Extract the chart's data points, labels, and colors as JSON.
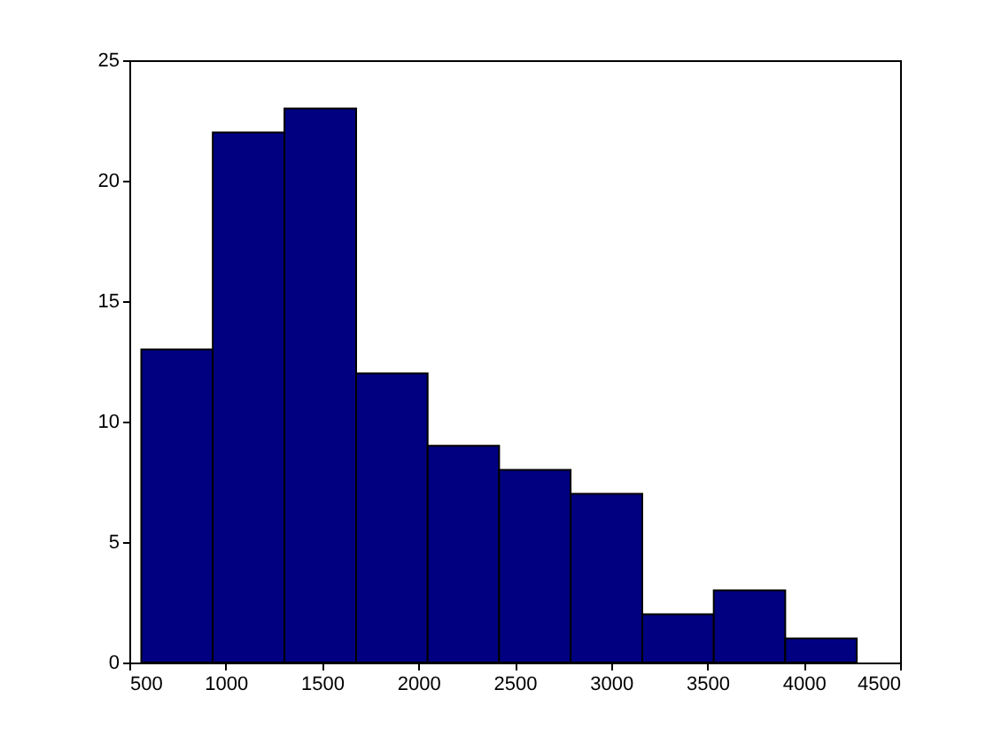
{
  "chart_data": {
    "type": "histogram",
    "bins": [
      562,
      933,
      1305,
      1677,
      2048,
      2419,
      2790,
      3162,
      3533,
      3904,
      4275
    ],
    "values": [
      13,
      22,
      23,
      12,
      9,
      8,
      7,
      2,
      3,
      1
    ],
    "color": "#000080",
    "xlim": [
      500,
      4500
    ],
    "xticks": [
      500,
      1000,
      1500,
      2000,
      2500,
      3000,
      3500,
      4000,
      4500
    ],
    "ylim": [
      0,
      25
    ],
    "yticks": [
      0,
      5,
      10,
      15,
      20,
      25
    ],
    "grid": false
  }
}
